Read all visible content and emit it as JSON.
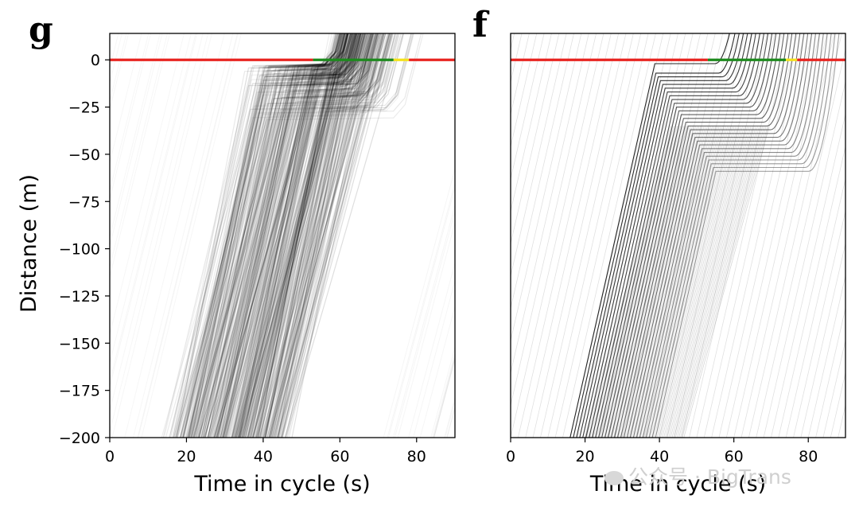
{
  "panels": [
    {
      "letter": "g",
      "xlabel": "Time in cycle (s)",
      "ylabel": "Distance (m)",
      "xticks": [
        "0",
        "20",
        "40",
        "60",
        "80"
      ],
      "yticks": [
        "0",
        "−25",
        "−50",
        "−75",
        "−100",
        "−125",
        "−150",
        "−175",
        "−200"
      ]
    },
    {
      "letter": "f",
      "xlabel": "Time in cycle (s)",
      "ylabel": "",
      "xticks": [
        "0",
        "20",
        "40",
        "60",
        "80"
      ],
      "yticks": []
    }
  ],
  "watermark": "公众号 · BigTrans",
  "chart_data": [
    {
      "type": "line",
      "title": "",
      "xlabel": "Time in cycle (s)",
      "ylabel": "Distance (m)",
      "xlim": [
        0,
        90
      ],
      "ylim": [
        -200,
        14
      ],
      "xticks": [
        0,
        20,
        40,
        60,
        80
      ],
      "yticks": [
        0,
        -25,
        -50,
        -75,
        -100,
        -125,
        -150,
        -175,
        -200
      ],
      "grid": false,
      "signal_phases": [
        {
          "state": "red",
          "color": "#e8231f",
          "x": [
            0,
            53
          ],
          "y": 0
        },
        {
          "state": "green",
          "color": "#1d8a1d",
          "x": [
            53,
            74
          ],
          "y": 0
        },
        {
          "state": "yellow",
          "color": "#f4e21c",
          "x": [
            74,
            78
          ],
          "y": 0
        },
        {
          "state": "red",
          "color": "#e8231f",
          "x": [
            78,
            90
          ],
          "y": 0
        }
      ],
      "trajectory_style": "dense semi-transparent gray vehicle trajectories (real-world data)",
      "queue_release_start_s": 55,
      "queue_length_m": 30,
      "arrival_window_s": [
        16,
        45
      ]
    },
    {
      "type": "line",
      "title": "",
      "xlabel": "Time in cycle (s)",
      "ylabel": "",
      "xlim": [
        0,
        90
      ],
      "ylim": [
        -200,
        14
      ],
      "xticks": [
        0,
        20,
        40,
        60,
        80
      ],
      "grid": false,
      "signal_phases": [
        {
          "state": "red",
          "color": "#e8231f",
          "x": [
            0,
            53
          ],
          "y": 0
        },
        {
          "state": "green",
          "color": "#1d8a1d",
          "x": [
            53,
            74
          ],
          "y": 0
        },
        {
          "state": "yellow",
          "color": "#f4e21c",
          "x": [
            74,
            77
          ],
          "y": 0
        },
        {
          "state": "red",
          "color": "#e8231f",
          "x": [
            77,
            90
          ],
          "y": 0
        }
      ],
      "trajectory_style": "discrete black simulated vehicle trajectories",
      "queued_vehicles": 28,
      "queue_spacing_m": 2,
      "queue_release_start_s": 55,
      "release_headway_s": 1.5,
      "arrival_window_s": [
        16,
        40
      ]
    }
  ]
}
